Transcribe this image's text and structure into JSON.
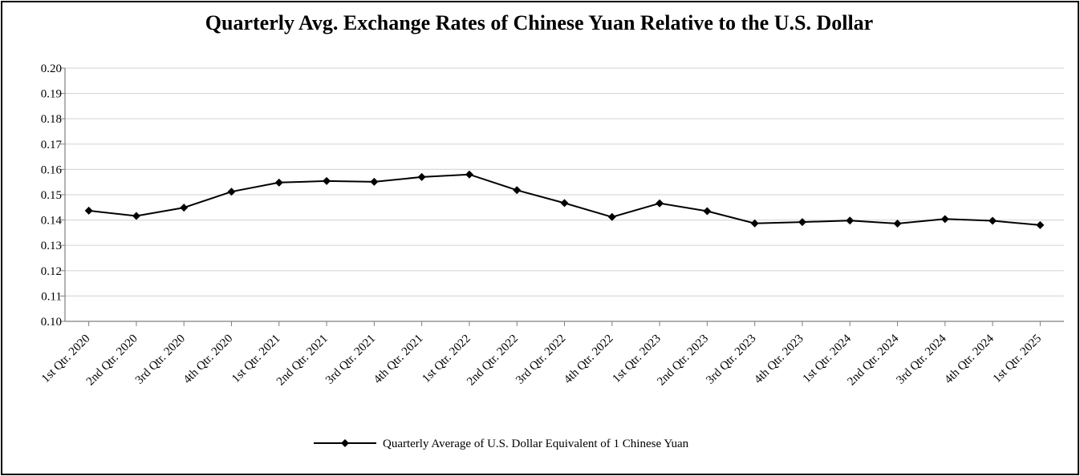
{
  "chart_data": {
    "type": "line",
    "title": "Quarterly Avg. Exchange Rates of Chinese Yuan Relative to the U.S. Dollar",
    "xlabel": "",
    "ylabel": "",
    "ylim": [
      0.1,
      0.2
    ],
    "yticks": [
      "0.10",
      "0.11",
      "0.12",
      "0.13",
      "0.14",
      "0.15",
      "0.16",
      "0.17",
      "0.18",
      "0.19",
      "0.20"
    ],
    "grid": true,
    "legend_position": "bottom",
    "categories": [
      "1st Qtr. 2020",
      "2nd Qtr. 2020",
      "3rd Qtr. 2020",
      "4th Qtr. 2020",
      "1st Qtr. 2021",
      "2nd Qtr. 2021",
      "3rd Qtr. 2021",
      "4th Qtr. 2021",
      "1st Qtr. 2022",
      "2nd Qtr. 2022",
      "3rd Qtr. 2022",
      "4th Qtr. 2022",
      "1st Qtr. 2023",
      "2nd Qtr. 2023",
      "3rd Qtr. 2023",
      "4th Qtr. 2023",
      "1st Qtr. 2024",
      "2nd Qtr. 2024",
      "3rd Qtr. 2024",
      "4th Qtr. 2024",
      "1st Qtr. 2025"
    ],
    "series": [
      {
        "name": "Quarterly Average of U.S. Dollar Equivalent of 1 Chinese Yuan",
        "color": "#000000",
        "marker": "diamond",
        "values": [
          0.1437,
          0.1416,
          0.1449,
          0.1512,
          0.1548,
          0.1554,
          0.1551,
          0.157,
          0.158,
          0.1518,
          0.1467,
          0.1412,
          0.1466,
          0.1435,
          0.1387,
          0.1392,
          0.1398,
          0.1386,
          0.1404,
          0.1397,
          0.138
        ]
      }
    ]
  }
}
